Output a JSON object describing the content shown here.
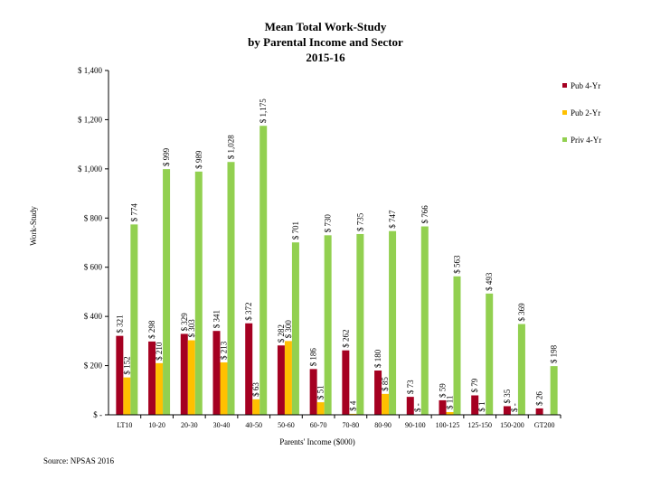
{
  "title": [
    "Mean Total Work-Study",
    "by Parental Income and Sector",
    "2015-16"
  ],
  "source": "Source: NPSAS 2016",
  "chart_data": {
    "type": "bar",
    "title": "Mean Total Work-Study by Parental Income and Sector 2015-16",
    "xlabel": "Parents' Income ($000)",
    "ylabel": "Work-Study",
    "ylim": [
      0,
      1400
    ],
    "yticks": [
      0,
      200,
      400,
      600,
      800,
      1000,
      1200,
      1400
    ],
    "ytick_labels": [
      "$ -",
      "$ 200",
      "$ 400",
      "$ 600",
      "$ 800",
      "$ 1,000",
      "$ 1,200",
      "$ 1,400"
    ],
    "legend_position": "right",
    "categories": [
      "LT10",
      "10-20",
      "20-30",
      "30-40",
      "40-50",
      "50-60",
      "60-70",
      "70-80",
      "80-90",
      "90-100",
      "100-125",
      "125-150",
      "150-200",
      "GT200"
    ],
    "series": [
      {
        "name": "Pub 4-Yr",
        "color": "#a50021",
        "values": [
          321,
          298,
          329,
          341,
          372,
          282,
          186,
          262,
          180,
          73,
          59,
          79,
          35,
          26
        ],
        "labels": [
          "$ 321",
          "$ 298",
          "$ 329",
          "$ 341",
          "$ 372",
          "$ 282",
          "$ 186",
          "$ 262",
          "$ 180",
          "$ 73",
          "$ 59",
          "$ 79",
          "$ 35",
          "$ 26"
        ]
      },
      {
        "name": "Pub 2-Yr",
        "color": "#ffc000",
        "values": [
          152,
          210,
          303,
          213,
          63,
          300,
          51,
          4,
          85,
          0,
          11,
          1,
          0,
          null
        ],
        "labels": [
          "$ 152",
          "$ 210",
          "$ 303",
          "$ 213",
          "$ 63",
          "$ 300",
          "$ 51",
          "$ 4",
          "$ 85",
          "$ -",
          "$ 11",
          "$ 1",
          "$ -",
          ""
        ]
      },
      {
        "name": "Priv 4-Yr",
        "color": "#92d050",
        "values": [
          774,
          999,
          989,
          1028,
          1175,
          701,
          730,
          735,
          747,
          766,
          563,
          493,
          369,
          198
        ],
        "labels": [
          "$ 774",
          "$ 999",
          "$ 989",
          "$ 1,028",
          "$ 1,175",
          "$ 701",
          "$ 730",
          "$ 735",
          "$ 747",
          "$ 766",
          "$ 563",
          "$ 493",
          "$ 369",
          "$ 198"
        ]
      }
    ]
  }
}
